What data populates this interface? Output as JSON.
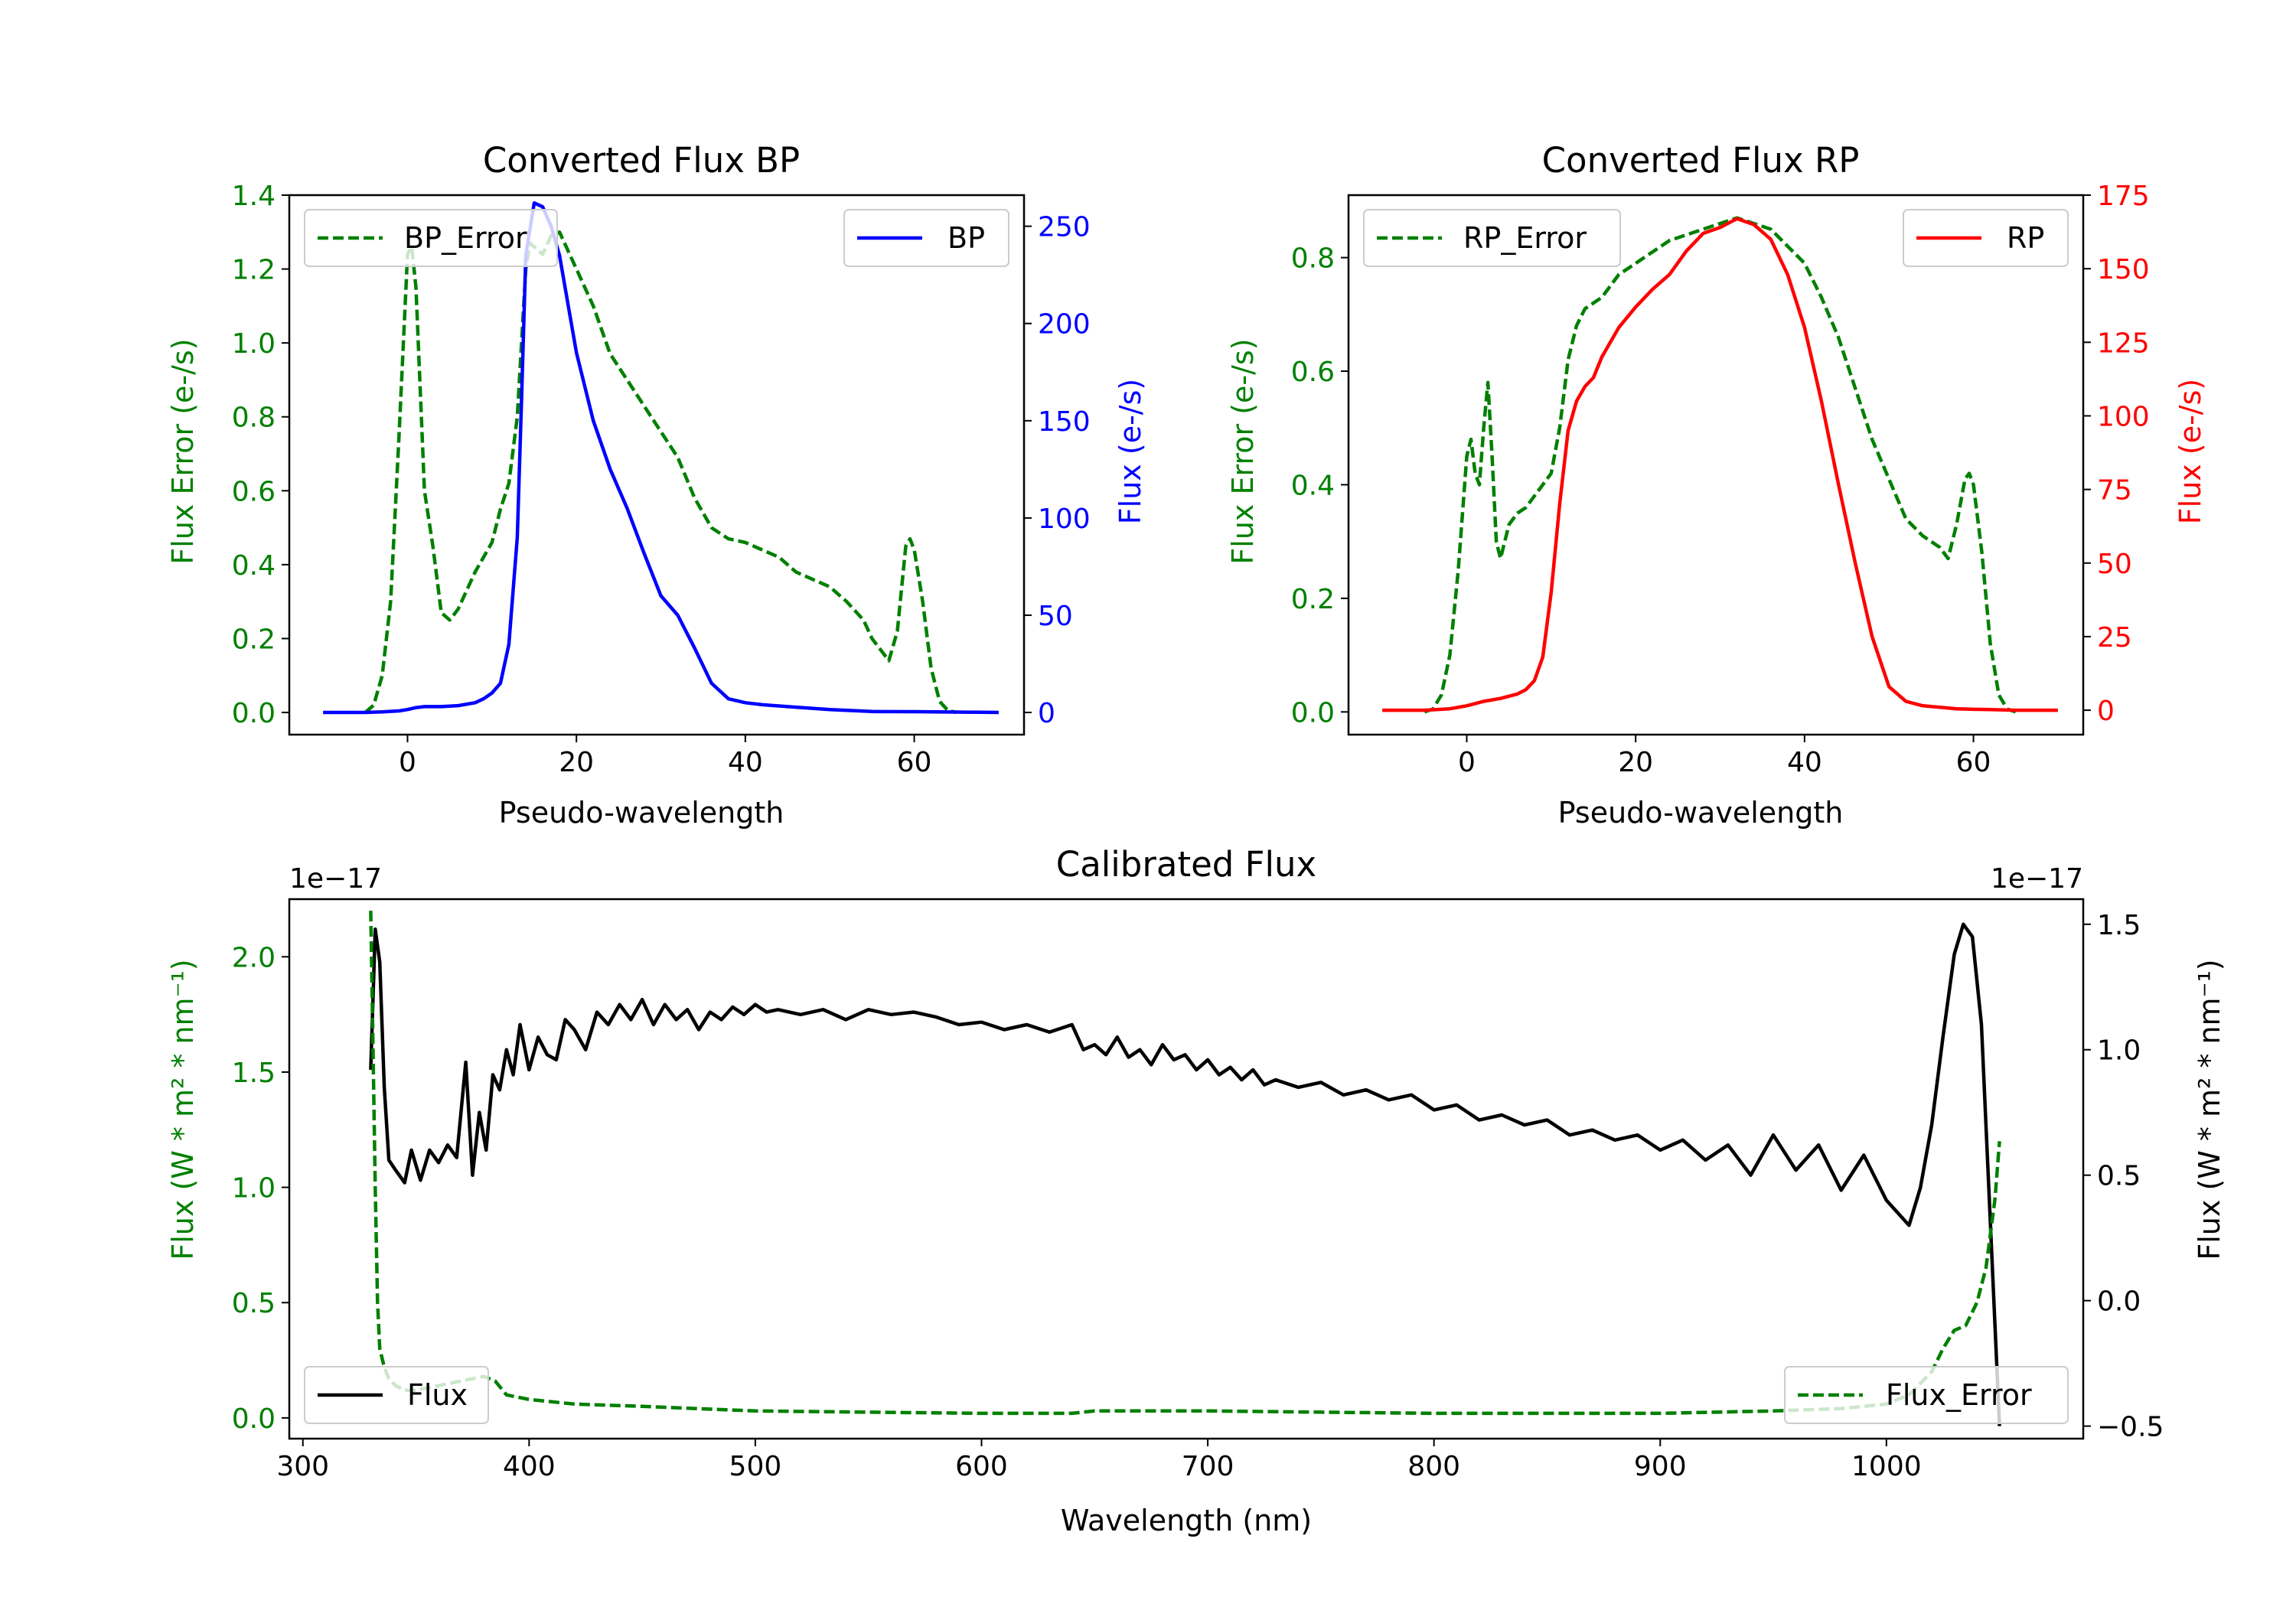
{
  "chart_data": [
    {
      "type": "line",
      "title": "Converted Flux BP",
      "xlabel": "Pseudo-wavelength",
      "ylabel_left": "Flux Error (e-/s)",
      "ylabel_right": "Flux (e-/s)",
      "xlim": [
        -14,
        73
      ],
      "ylim_left": [
        -0.06,
        1.4
      ],
      "ylim_right": [
        -11.4,
        266
      ],
      "xticks": [
        0,
        20,
        40,
        60
      ],
      "yticks_left": [
        0.0,
        0.2,
        0.4,
        0.6,
        0.8,
        1.0,
        1.2,
        1.4
      ],
      "yticks_right": [
        0,
        50,
        100,
        150,
        200,
        250
      ],
      "left_color": "#008000",
      "right_color": "#0000ff",
      "legend_left": "BP_Error",
      "legend_right": "BP",
      "series": [
        {
          "name": "BP_Error",
          "axis": "left",
          "style": "dashed",
          "color": "#008000",
          "x": [
            -5,
            -4,
            -3,
            -2,
            -1,
            0,
            0.5,
            1,
            2,
            3,
            4,
            5,
            6,
            7,
            8,
            9,
            10,
            11,
            12,
            13,
            14,
            14.5,
            15,
            16,
            17,
            18,
            19,
            20,
            22,
            24,
            26,
            28,
            30,
            32,
            34,
            36,
            38,
            40,
            42,
            44,
            46,
            48,
            50,
            52,
            54,
            55,
            56,
            57,
            58,
            59,
            59.5,
            60,
            61,
            62,
            63,
            64,
            65
          ],
          "values": [
            0,
            0.02,
            0.1,
            0.3,
            0.75,
            1.24,
            1.26,
            1.15,
            0.6,
            0.45,
            0.27,
            0.25,
            0.28,
            0.33,
            0.38,
            0.42,
            0.46,
            0.55,
            0.62,
            0.8,
            1.2,
            1.27,
            1.26,
            1.24,
            1.29,
            1.3,
            1.25,
            1.2,
            1.1,
            0.97,
            0.9,
            0.83,
            0.76,
            0.69,
            0.58,
            0.5,
            0.47,
            0.46,
            0.44,
            0.42,
            0.38,
            0.36,
            0.34,
            0.3,
            0.25,
            0.2,
            0.17,
            0.14,
            0.22,
            0.45,
            0.47,
            0.44,
            0.3,
            0.12,
            0.03,
            0.005,
            0
          ]
        },
        {
          "name": "BP",
          "axis": "right",
          "style": "solid",
          "color": "#0000ff",
          "x": [
            -10,
            -5,
            -3,
            -1,
            0,
            1,
            2,
            4,
            6,
            8,
            9,
            10,
            11,
            12,
            13,
            13.5,
            14,
            15,
            16,
            17,
            18,
            19,
            20,
            22,
            24,
            26,
            28,
            30,
            32,
            34,
            36,
            38,
            40,
            42,
            45,
            50,
            55,
            60,
            65,
            70
          ],
          "values": [
            0,
            0,
            0.3,
            0.8,
            1.5,
            2.5,
            3,
            3,
            3.5,
            5,
            7,
            10,
            15,
            35,
            90,
            160,
            235,
            262,
            260,
            250,
            235,
            210,
            185,
            150,
            125,
            105,
            82,
            60,
            50,
            33,
            15,
            7,
            5,
            4,
            3,
            1.5,
            0.5,
            0.4,
            0.2,
            0
          ]
        }
      ]
    },
    {
      "type": "line",
      "title": "Converted Flux RP",
      "xlabel": "Pseudo-wavelength",
      "ylabel_left": "Flux Error (e-/s)",
      "ylabel_right": "Flux (e-/s)",
      "xlim": [
        -14,
        73
      ],
      "ylim_left": [
        -0.04,
        0.91
      ],
      "ylim_right": [
        -8.3,
        175
      ],
      "xticks": [
        0,
        20,
        40,
        60
      ],
      "yticks_left": [
        0.0,
        0.2,
        0.4,
        0.6,
        0.8
      ],
      "yticks_right": [
        0,
        25,
        50,
        75,
        100,
        125,
        150,
        175
      ],
      "left_color": "#008000",
      "right_color": "#ff0000",
      "legend_left": "RP_Error",
      "legend_right": "RP",
      "series": [
        {
          "name": "RP_Error",
          "axis": "left",
          "style": "dashed",
          "color": "#008000",
          "x": [
            -5,
            -4,
            -3,
            -2,
            -1,
            0,
            0.5,
            1,
            1.5,
            2,
            2.5,
            3,
            3.5,
            4,
            5,
            6,
            7,
            8,
            9,
            10,
            11,
            12,
            13,
            14,
            15,
            16,
            17,
            18,
            19,
            20,
            22,
            24,
            26,
            28,
            30,
            32,
            34,
            36,
            38,
            40,
            42,
            44,
            46,
            48,
            50,
            52,
            54,
            55,
            56,
            57,
            58,
            59,
            59.5,
            60,
            61,
            62,
            63,
            64,
            65
          ],
          "values": [
            0,
            0.005,
            0.03,
            0.1,
            0.25,
            0.45,
            0.48,
            0.42,
            0.4,
            0.5,
            0.58,
            0.45,
            0.3,
            0.27,
            0.33,
            0.35,
            0.36,
            0.38,
            0.4,
            0.42,
            0.5,
            0.62,
            0.68,
            0.71,
            0.72,
            0.73,
            0.75,
            0.77,
            0.78,
            0.79,
            0.81,
            0.83,
            0.84,
            0.85,
            0.86,
            0.87,
            0.86,
            0.85,
            0.82,
            0.79,
            0.73,
            0.66,
            0.57,
            0.48,
            0.41,
            0.34,
            0.31,
            0.3,
            0.29,
            0.27,
            0.33,
            0.41,
            0.42,
            0.4,
            0.28,
            0.12,
            0.03,
            0.005,
            0
          ]
        },
        {
          "name": "RP",
          "axis": "right",
          "style": "solid",
          "color": "#ff0000",
          "x": [
            -10,
            -5,
            -2,
            0,
            2,
            4,
            6,
            7,
            8,
            9,
            10,
            11,
            12,
            13,
            14,
            15,
            16,
            18,
            20,
            22,
            24,
            26,
            28,
            30,
            32,
            34,
            36,
            38,
            40,
            42,
            44,
            46,
            48,
            50,
            52,
            54,
            56,
            58,
            60,
            62,
            65,
            70
          ],
          "values": [
            0,
            0,
            0.5,
            1.5,
            3,
            4,
            5.5,
            7,
            10,
            18,
            40,
            70,
            95,
            105,
            110,
            113,
            120,
            130,
            137,
            143,
            148,
            156,
            162,
            164,
            167,
            165,
            160,
            148,
            130,
            105,
            77,
            50,
            25,
            8,
            3,
            1.5,
            1,
            0.5,
            0.3,
            0.2,
            0,
            0
          ]
        }
      ]
    },
    {
      "type": "line",
      "title": "Calibrated Flux",
      "xlabel": "Wavelength (nm)",
      "ylabel_left": "Flux (W * m² * nm⁻¹)",
      "ylabel_right": "Flux (W * m² * nm⁻¹)",
      "offset_left": "1e−17",
      "offset_right": "1e−17",
      "xlim": [
        294,
        1087
      ],
      "ylim_left": [
        -0.09,
        2.25
      ],
      "ylim_right": [
        -0.55,
        1.6
      ],
      "xticks": [
        300,
        400,
        500,
        600,
        700,
        800,
        900,
        1000
      ],
      "yticks_left": [
        0.0,
        0.5,
        1.0,
        1.5,
        2.0
      ],
      "yticks_right": [
        -0.5,
        0.0,
        0.5,
        1.0,
        1.5
      ],
      "left_color": "#008000",
      "right_color": "#000000",
      "legend_left": "Flux",
      "legend_right": "Flux_Error",
      "series": [
        {
          "name": "Flux",
          "axis": "right",
          "style": "solid",
          "color": "#000000",
          "x": [
            330,
            332,
            334,
            336,
            338,
            341,
            345,
            348,
            352,
            356,
            360,
            364,
            368,
            372,
            375,
            378,
            381,
            384,
            387,
            390,
            393,
            396,
            400,
            404,
            408,
            412,
            416,
            420,
            425,
            430,
            435,
            440,
            445,
            450,
            455,
            460,
            465,
            470,
            475,
            480,
            485,
            490,
            495,
            500,
            505,
            510,
            520,
            530,
            540,
            550,
            560,
            570,
            580,
            590,
            600,
            610,
            620,
            630,
            640,
            645,
            650,
            655,
            660,
            665,
            670,
            675,
            680,
            685,
            690,
            695,
            700,
            705,
            710,
            715,
            720,
            725,
            730,
            740,
            750,
            760,
            770,
            780,
            790,
            800,
            810,
            820,
            830,
            840,
            850,
            860,
            870,
            880,
            890,
            900,
            910,
            920,
            930,
            940,
            950,
            960,
            970,
            980,
            990,
            1000,
            1010,
            1015,
            1020,
            1025,
            1030,
            1034,
            1038,
            1042,
            1046,
            1050
          ],
          "values": [
            0.92,
            1.48,
            1.35,
            0.85,
            0.56,
            0.52,
            0.47,
            0.6,
            0.48,
            0.6,
            0.55,
            0.62,
            0.57,
            0.95,
            0.5,
            0.75,
            0.6,
            0.9,
            0.84,
            1.0,
            0.9,
            1.1,
            0.92,
            1.05,
            0.98,
            0.96,
            1.12,
            1.08,
            1.0,
            1.15,
            1.1,
            1.18,
            1.12,
            1.2,
            1.1,
            1.18,
            1.12,
            1.16,
            1.08,
            1.15,
            1.12,
            1.17,
            1.14,
            1.18,
            1.15,
            1.16,
            1.14,
            1.16,
            1.12,
            1.16,
            1.14,
            1.15,
            1.13,
            1.1,
            1.11,
            1.08,
            1.1,
            1.07,
            1.1,
            1.0,
            1.02,
            0.98,
            1.05,
            0.97,
            1.0,
            0.94,
            1.02,
            0.96,
            0.98,
            0.92,
            0.96,
            0.9,
            0.93,
            0.88,
            0.92,
            0.86,
            0.88,
            0.85,
            0.87,
            0.82,
            0.84,
            0.8,
            0.82,
            0.76,
            0.78,
            0.72,
            0.74,
            0.7,
            0.72,
            0.66,
            0.68,
            0.64,
            0.66,
            0.6,
            0.64,
            0.56,
            0.62,
            0.5,
            0.66,
            0.52,
            0.62,
            0.44,
            0.58,
            0.4,
            0.3,
            0.45,
            0.7,
            1.05,
            1.38,
            1.5,
            1.45,
            1.1,
            0.3,
            -0.5
          ]
        },
        {
          "name": "Flux_Error",
          "axis": "left",
          "style": "dashed",
          "color": "#008000",
          "x": [
            330,
            331,
            332,
            333,
            334,
            336,
            338,
            341,
            345,
            350,
            360,
            370,
            380,
            385,
            390,
            400,
            420,
            450,
            500,
            550,
            600,
            640,
            650,
            700,
            750,
            800,
            850,
            900,
            950,
            980,
            1000,
            1010,
            1020,
            1025,
            1030,
            1035,
            1040,
            1044,
            1048,
            1050
          ],
          "values": [
            2.2,
            1.6,
            1.0,
            0.5,
            0.3,
            0.22,
            0.17,
            0.14,
            0.12,
            0.12,
            0.14,
            0.16,
            0.18,
            0.16,
            0.1,
            0.08,
            0.06,
            0.05,
            0.03,
            0.025,
            0.02,
            0.02,
            0.03,
            0.03,
            0.025,
            0.02,
            0.02,
            0.02,
            0.03,
            0.04,
            0.06,
            0.1,
            0.2,
            0.3,
            0.38,
            0.4,
            0.5,
            0.65,
            0.95,
            1.2
          ]
        }
      ]
    }
  ]
}
